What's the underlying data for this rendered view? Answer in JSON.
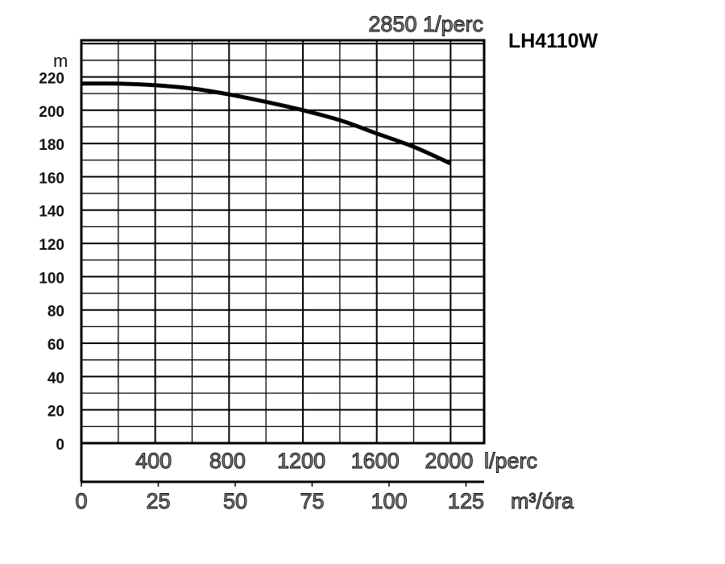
{
  "chart_data": {
    "type": "line",
    "title": "LH4110W",
    "subtitle": "2850 1/perc",
    "ylabel": "m",
    "xlabel": "m³/óra",
    "x2label": "l/perc",
    "ylim": [
      0,
      242
    ],
    "xlim": [
      0,
      130.9
    ],
    "grid": true,
    "yticks": [
      0,
      20,
      40,
      60,
      80,
      100,
      120,
      140,
      160,
      180,
      200,
      220
    ],
    "xticks": [
      0,
      25,
      50,
      75,
      100,
      125
    ],
    "x2ticks": [
      400,
      800,
      1200,
      1600,
      2000
    ],
    "series": [
      {
        "x_lpm": [
          0,
          200,
          400,
          600,
          800,
          1000,
          1200,
          1400,
          1600,
          1800,
          2000
        ],
        "x": [
          0,
          12,
          24,
          36,
          48,
          60,
          72,
          84,
          96,
          108,
          120
        ],
        "y": [
          216,
          216,
          215,
          213,
          209.5,
          205,
          200,
          194,
          186,
          178,
          168
        ]
      }
    ]
  }
}
